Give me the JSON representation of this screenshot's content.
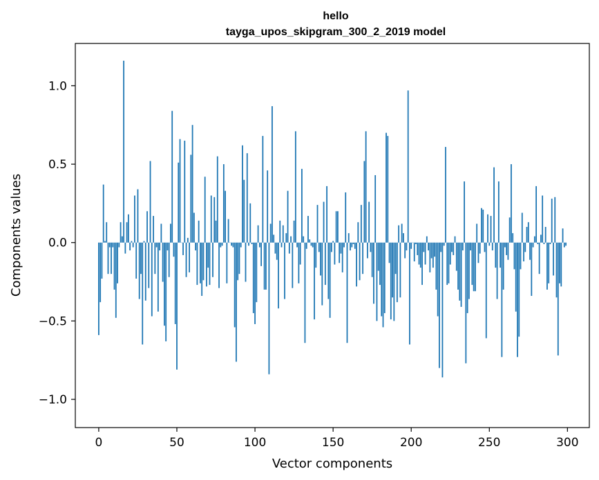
{
  "chart_data": {
    "type": "bar",
    "title_lines": [
      "hello",
      "tayga_upos_skipgram_300_2_2019 model"
    ],
    "xlabel": "Vector components",
    "ylabel": "Components values",
    "xlim": [
      -15,
      314
    ],
    "ylim": [
      -1.18,
      1.27
    ],
    "xticks": [
      0,
      50,
      100,
      150,
      200,
      250,
      300
    ],
    "yticks": [
      1.0,
      0.5,
      0.0,
      -0.5,
      -1.0
    ],
    "ytick_labels": [
      "1.0",
      "0.5",
      "0.0",
      "−0.5",
      "−1.0"
    ],
    "grid": false,
    "legend": "none",
    "bar_color": "#1f77b4",
    "values": [
      -0.59,
      -0.38,
      -0.23,
      0.37,
      0.01,
      0.13,
      -0.2,
      -0.03,
      -0.2,
      -0.03,
      -0.3,
      -0.48,
      -0.26,
      -0.03,
      0.13,
      0.04,
      1.16,
      -0.07,
      0.13,
      0.18,
      -0.05,
      0.01,
      -0.03,
      0.3,
      -0.23,
      0.34,
      -0.36,
      -0.2,
      -0.65,
      0.01,
      -0.37,
      0.2,
      -0.29,
      0.52,
      -0.47,
      0.17,
      -0.2,
      -0.03,
      -0.44,
      -0.05,
      0.12,
      -0.25,
      -0.53,
      -0.63,
      -0.05,
      -0.22,
      0.12,
      0.84,
      -0.09,
      -0.52,
      -0.81,
      0.51,
      0.66,
      0.0,
      -0.08,
      0.65,
      -0.22,
      0.03,
      -0.19,
      0.56,
      0.75,
      0.19,
      -0.05,
      -0.27,
      0.14,
      -0.26,
      -0.34,
      -0.24,
      0.42,
      -0.28,
      -0.16,
      -0.27,
      0.3,
      -0.22,
      0.29,
      0.14,
      0.55,
      -0.29,
      -0.03,
      -0.02,
      0.5,
      0.33,
      -0.26,
      0.15,
      0.0,
      -0.02,
      -0.03,
      -0.54,
      -0.76,
      -0.24,
      -0.2,
      -0.03,
      0.62,
      0.4,
      -0.25,
      0.57,
      -0.02,
      0.25,
      -0.01,
      -0.45,
      -0.52,
      -0.38,
      0.11,
      -0.03,
      -0.15,
      0.68,
      -0.3,
      -0.3,
      0.46,
      -0.84,
      0.12,
      0.87,
      0.05,
      -0.07,
      -0.11,
      -0.42,
      0.14,
      -0.03,
      0.11,
      -0.36,
      0.06,
      0.33,
      -0.07,
      0.04,
      -0.29,
      0.14,
      0.71,
      -0.03,
      -0.26,
      -0.14,
      0.47,
      0.04,
      -0.64,
      -0.04,
      0.17,
      0.02,
      -0.02,
      -0.03,
      -0.49,
      -0.16,
      0.24,
      -0.06,
      -0.21,
      -0.4,
      0.26,
      -0.27,
      0.36,
      -0.36,
      -0.48,
      -0.06,
      0.01,
      -0.14,
      0.2,
      0.2,
      -0.13,
      -0.07,
      -0.19,
      -0.03,
      0.32,
      -0.64,
      0.06,
      -0.05,
      -0.03,
      -0.01,
      -0.04,
      -0.28,
      0.13,
      -0.24,
      0.24,
      -0.2,
      0.52,
      0.71,
      -0.1,
      0.26,
      -0.06,
      -0.22,
      -0.39,
      0.43,
      -0.5,
      -0.18,
      -0.27,
      -0.47,
      -0.54,
      -0.45,
      0.7,
      0.68,
      -0.13,
      -0.49,
      -0.35,
      -0.5,
      -0.2,
      -0.38,
      0.11,
      -0.35,
      0.12,
      0.06,
      -0.1,
      -0.05,
      0.97,
      -0.65,
      -0.04,
      0.0,
      -0.12,
      -0.01,
      -0.08,
      -0.14,
      -0.16,
      -0.27,
      -0.06,
      -0.14,
      0.04,
      -0.05,
      -0.19,
      -0.1,
      -0.16,
      -0.09,
      -0.3,
      -0.47,
      -0.8,
      -0.06,
      -0.86,
      -0.02,
      0.61,
      -0.27,
      -0.26,
      -0.14,
      -0.06,
      -0.08,
      0.04,
      -0.18,
      -0.3,
      -0.37,
      -0.41,
      -0.05,
      0.39,
      -0.77,
      -0.45,
      -0.36,
      -0.05,
      -0.27,
      -0.31,
      -0.31,
      0.12,
      -0.13,
      -0.07,
      0.22,
      0.21,
      -0.06,
      -0.61,
      0.18,
      -0.02,
      0.17,
      -0.05,
      0.48,
      -0.16,
      -0.36,
      0.39,
      -0.16,
      -0.73,
      -0.3,
      -0.03,
      -0.08,
      -0.11,
      0.16,
      0.5,
      0.06,
      -0.17,
      -0.44,
      -0.73,
      -0.6,
      -0.17,
      0.19,
      -0.12,
      -0.06,
      0.1,
      0.13,
      -0.11,
      -0.34,
      -0.03,
      0.04,
      0.36,
      -0.01,
      -0.2,
      0.05,
      0.3,
      -0.01,
      0.1,
      -0.3,
      -0.26,
      -0.01,
      0.28,
      -0.21,
      0.29,
      -0.35,
      -0.72,
      -0.26,
      -0.28,
      0.09,
      -0.03,
      -0.02
    ]
  }
}
